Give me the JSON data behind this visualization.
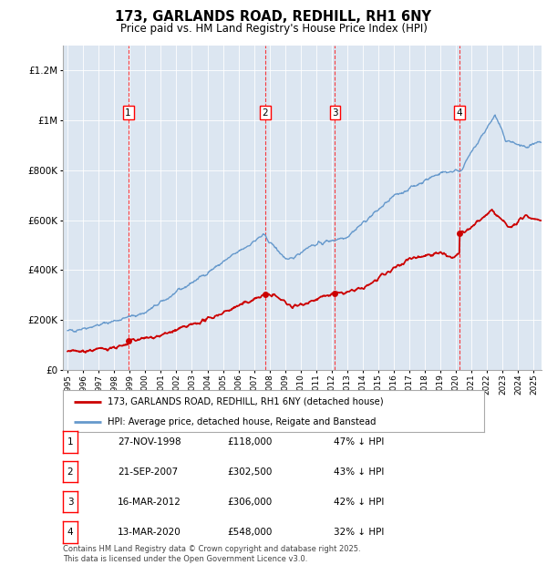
{
  "title": "173, GARLANDS ROAD, REDHILL, RH1 6NY",
  "subtitle": "Price paid vs. HM Land Registry's House Price Index (HPI)",
  "plot_bg_color": "#dce6f1",
  "ylim": [
    0,
    1300000
  ],
  "yticks": [
    0,
    200000,
    400000,
    600000,
    800000,
    1000000,
    1200000
  ],
  "ytick_labels": [
    "£0",
    "£200K",
    "£400K",
    "£600K",
    "£800K",
    "£1M",
    "£1.2M"
  ],
  "year_start": 1995,
  "year_end": 2025,
  "transactions": [
    {
      "label": "1",
      "date": "27-NOV-1998",
      "x": 1998.9,
      "price": 118000,
      "pct": "47% ↓ HPI"
    },
    {
      "label": "2",
      "date": "21-SEP-2007",
      "x": 2007.72,
      "price": 302500,
      "pct": "43% ↓ HPI"
    },
    {
      "label": "3",
      "date": "16-MAR-2012",
      "x": 2012.21,
      "price": 306000,
      "pct": "42% ↓ HPI"
    },
    {
      "label": "4",
      "date": "13-MAR-2020",
      "x": 2020.21,
      "price": 548000,
      "pct": "32% ↓ HPI"
    }
  ],
  "legend_line1": "173, GARLANDS ROAD, REDHILL, RH1 6NY (detached house)",
  "legend_line2": "HPI: Average price, detached house, Reigate and Banstead",
  "footer": "Contains HM Land Registry data © Crown copyright and database right 2025.\nThis data is licensed under the Open Government Licence v3.0.",
  "red_color": "#cc0000",
  "blue_color": "#6699cc"
}
